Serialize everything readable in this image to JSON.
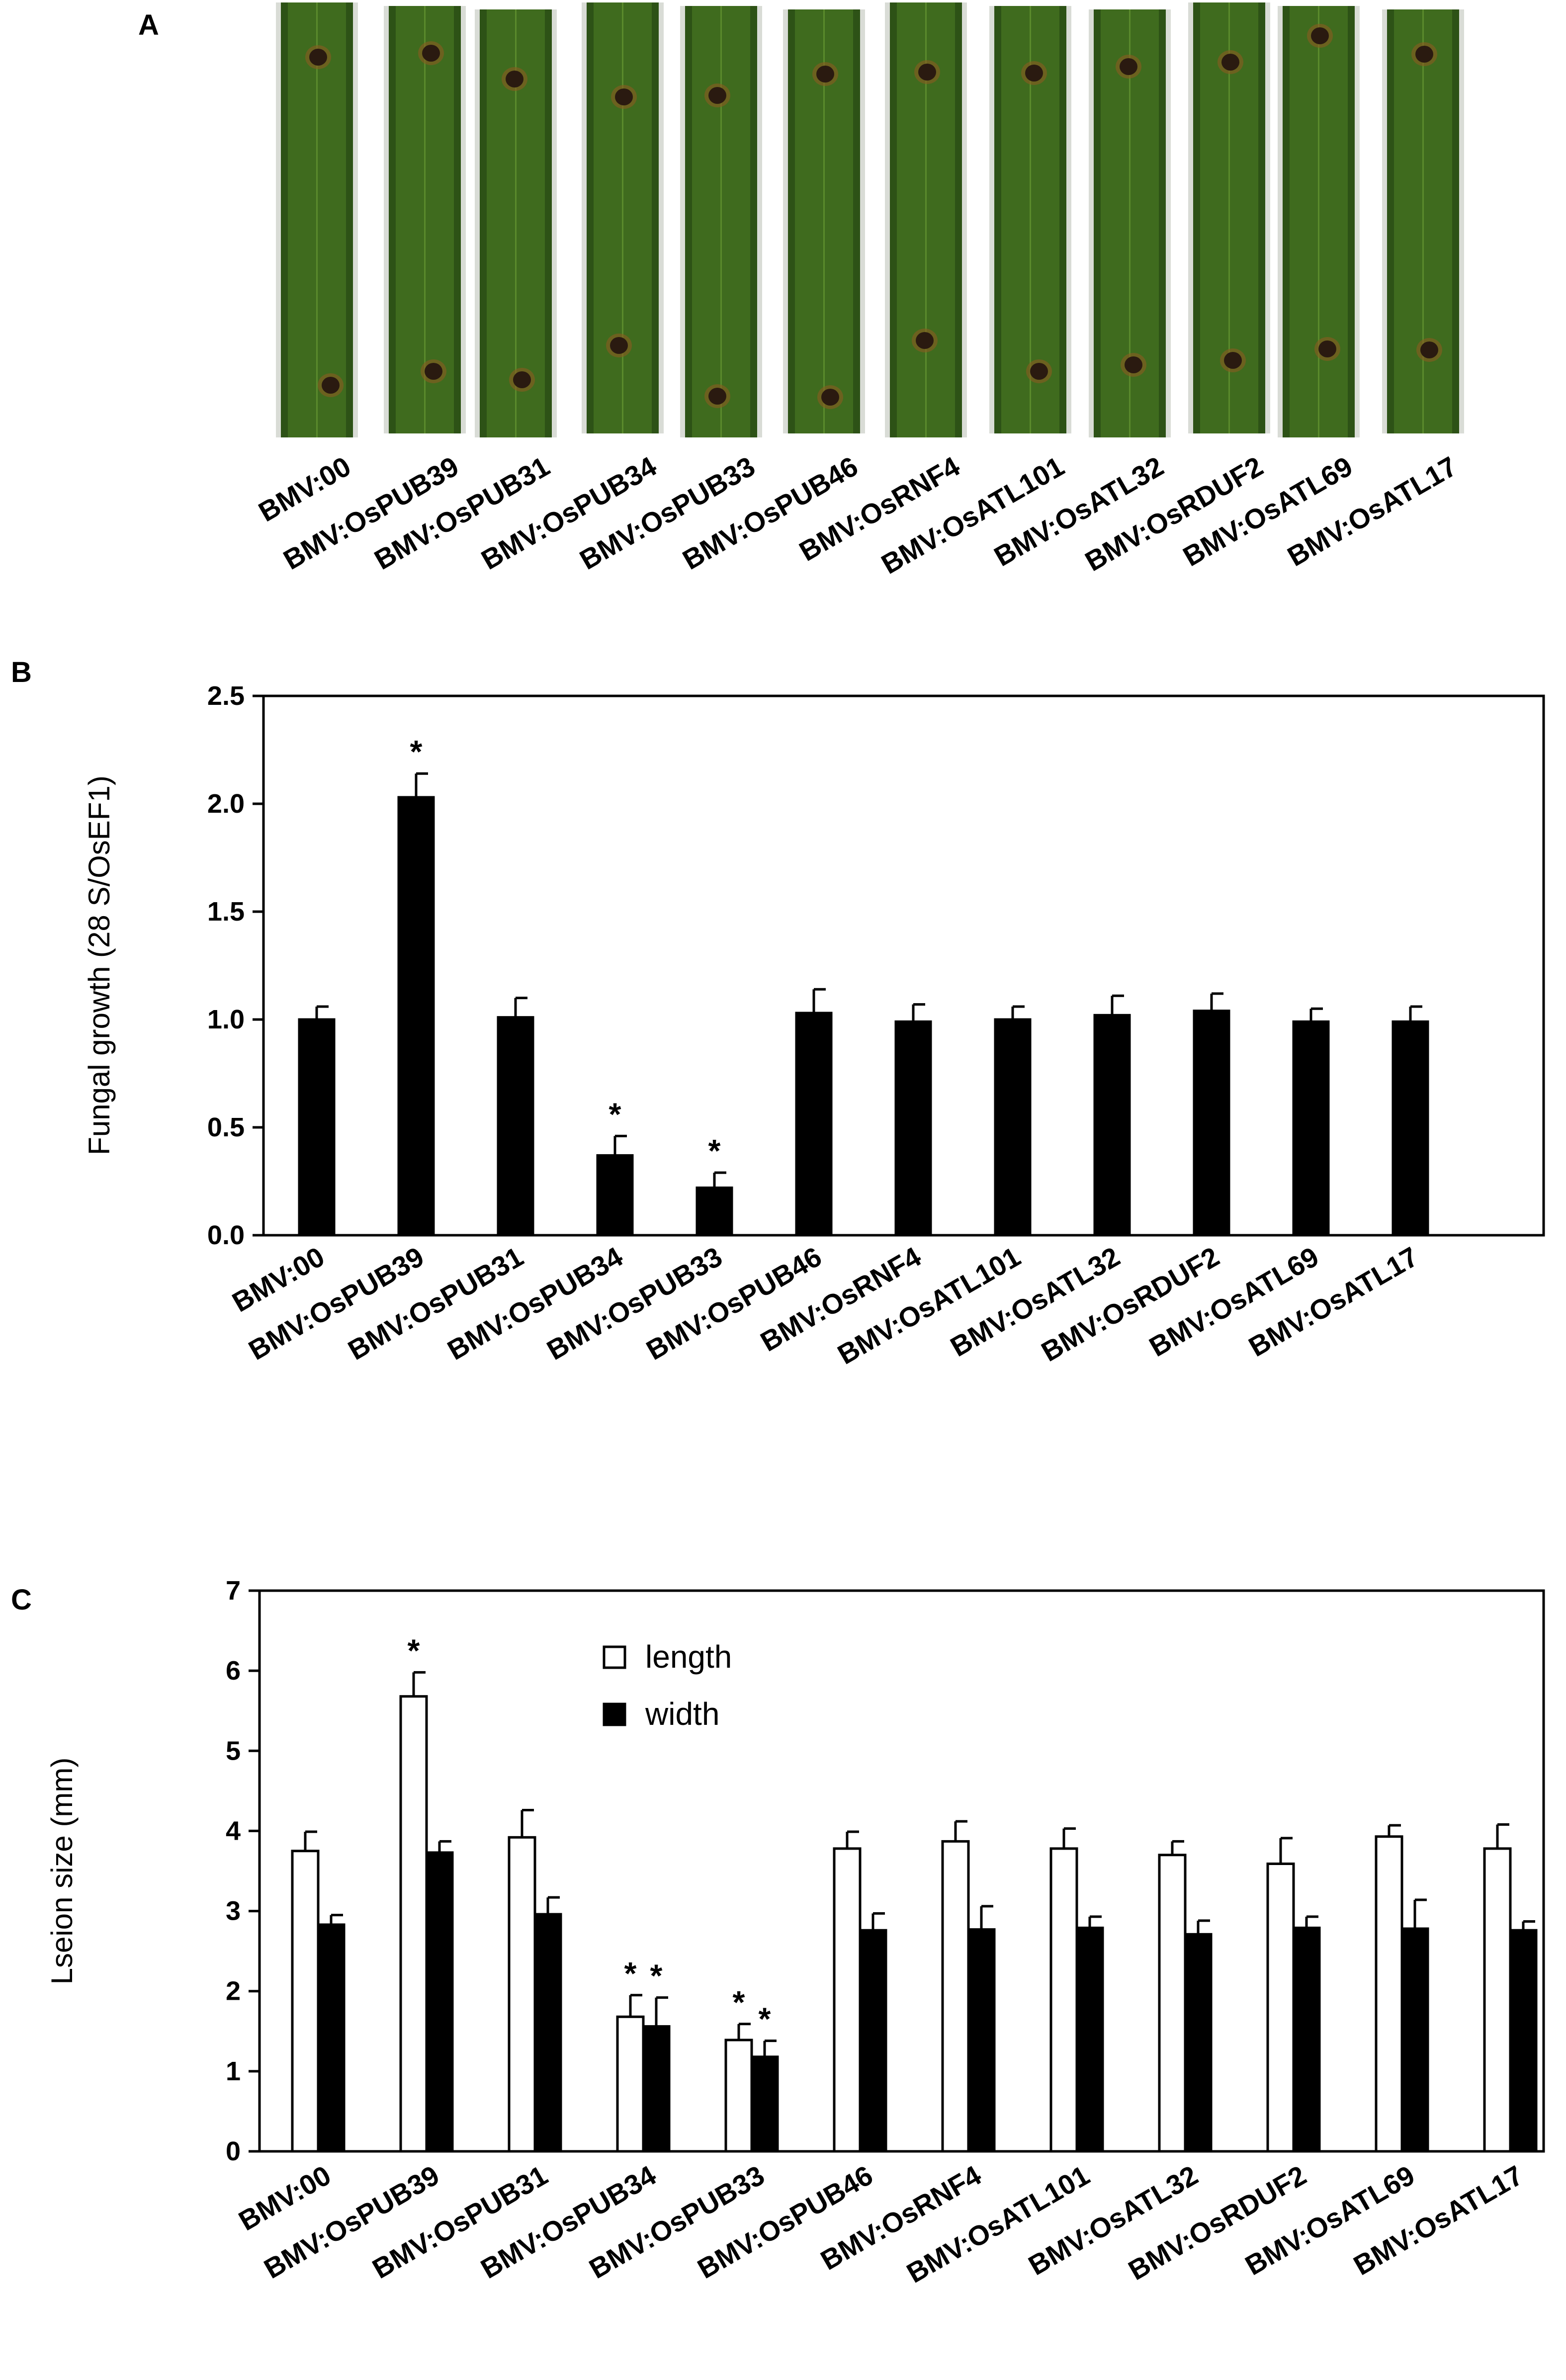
{
  "panels": {
    "a": {
      "letter": "A"
    },
    "b": {
      "letter": "B"
    },
    "c": {
      "letter": "C"
    }
  },
  "colors": {
    "bar_fill": "#000000",
    "bar_open": "#ffffff",
    "leaf_green": "#3f6b1e",
    "leaf_dark": "#2d5216",
    "lesion": "#2a1a10",
    "lesion_halo": "#8a5a20"
  },
  "panel_a": {
    "description_icon": "leaf-photo",
    "labels": [
      "BMV:00",
      "BMV:OsPUB39",
      "BMV:OsPUB31",
      "BMV:OsPUB34",
      "BMV:OsPUB33",
      "BMV:OsPUB46",
      "BMV:OsRNF4",
      "BMV:OsATL101",
      "BMV:OsATL32",
      "BMV:OsRDUF2",
      "BMV:OsATL69",
      "BMV:OsATL17"
    ]
  },
  "chart_data": [
    {
      "type": "bar",
      "panel": "B",
      "title": "",
      "xlabel": "",
      "ylabel": "Fungal growth (28 S/OsEF1)",
      "ylim": [
        0,
        2.5
      ],
      "yticks": [
        0.0,
        0.5,
        1.0,
        1.5,
        2.0,
        2.5
      ],
      "ytick_labels": [
        "0.0",
        "0.5",
        "1.0",
        "1.5",
        "2.0",
        "2.5"
      ],
      "categories": [
        "BMV:00",
        "BMV:OsPUB39",
        "BMV:OsPUB31",
        "BMV:OsPUB34",
        "BMV:OsPUB33",
        "BMV:OsPUB46",
        "BMV:OsRNF4",
        "BMV:OsATL101",
        "BMV:OsATL32",
        "BMV:OsRDUF2",
        "BMV:OsATL69",
        "BMV:OsATL17"
      ],
      "series": [
        {
          "name": "Fungal growth",
          "values": [
            1.0,
            2.03,
            1.01,
            0.37,
            0.22,
            1.03,
            0.99,
            1.0,
            1.02,
            1.04,
            0.99,
            0.99
          ],
          "errors": [
            0.06,
            0.11,
            0.09,
            0.09,
            0.07,
            0.11,
            0.08,
            0.06,
            0.09,
            0.08,
            0.06,
            0.07
          ],
          "significant": [
            false,
            true,
            false,
            true,
            true,
            false,
            false,
            false,
            false,
            false,
            false,
            false
          ]
        }
      ],
      "significance_mark": "*",
      "grid": false
    },
    {
      "type": "bar",
      "panel": "C",
      "title": "",
      "xlabel": "",
      "ylabel": "Lseion size (mm)",
      "ylim": [
        0,
        7
      ],
      "yticks": [
        0,
        1,
        2,
        3,
        4,
        5,
        6,
        7
      ],
      "ytick_labels": [
        "0",
        "1",
        "2",
        "3",
        "4",
        "5",
        "6",
        "7"
      ],
      "categories": [
        "BMV:00",
        "BMV:OsPUB39",
        "BMV:OsPUB31",
        "BMV:OsPUB34",
        "BMV:OsPUB33",
        "BMV:OsPUB46",
        "BMV:OsRNF4",
        "BMV:OsATL101",
        "BMV:OsATL32",
        "BMV:OsRDUF2",
        "BMV:OsATL69",
        "BMV:OsATL17"
      ],
      "legend": {
        "placement": "top-center",
        "entries": [
          "length",
          "width"
        ]
      },
      "series": [
        {
          "name": "length",
          "style": "open",
          "values": [
            3.75,
            5.68,
            3.92,
            1.68,
            1.39,
            3.78,
            3.87,
            3.78,
            3.7,
            3.59,
            3.93,
            3.78
          ],
          "errors": [
            0.24,
            0.3,
            0.34,
            0.27,
            0.2,
            0.21,
            0.25,
            0.25,
            0.17,
            0.32,
            0.14,
            0.3
          ],
          "significant": [
            false,
            true,
            false,
            true,
            true,
            false,
            false,
            false,
            false,
            false,
            false,
            false
          ]
        },
        {
          "name": "width",
          "style": "filled",
          "values": [
            2.83,
            3.73,
            2.96,
            1.56,
            1.18,
            2.76,
            2.77,
            2.79,
            2.71,
            2.79,
            2.78,
            2.76
          ],
          "errors": [
            0.12,
            0.14,
            0.21,
            0.36,
            0.2,
            0.21,
            0.29,
            0.14,
            0.17,
            0.14,
            0.36,
            0.11
          ],
          "significant": [
            false,
            false,
            false,
            true,
            true,
            false,
            false,
            false,
            false,
            false,
            false,
            false
          ]
        }
      ],
      "significance_mark": "*",
      "grid": false
    }
  ]
}
